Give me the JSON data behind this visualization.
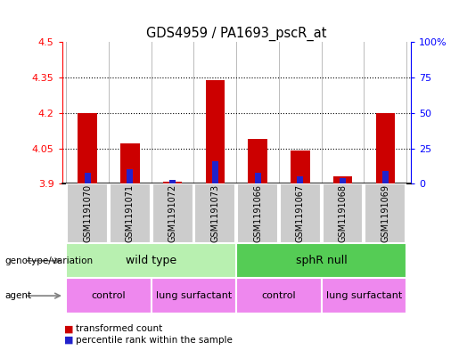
{
  "title": "GDS4959 / PA1693_pscR_at",
  "samples": [
    "GSM1191070",
    "GSM1191071",
    "GSM1191072",
    "GSM1191073",
    "GSM1191066",
    "GSM1191067",
    "GSM1191068",
    "GSM1191069"
  ],
  "red_values": [
    4.2,
    4.07,
    3.91,
    4.34,
    4.09,
    4.04,
    3.93,
    4.2
  ],
  "blue_values_pct": [
    8,
    10,
    3,
    16,
    8,
    5,
    4,
    9
  ],
  "ymin": 3.9,
  "ymax": 4.5,
  "yticks_left": [
    3.9,
    4.05,
    4.2,
    4.35,
    4.5
  ],
  "yticks_right": [
    0,
    25,
    50,
    75,
    100
  ],
  "bar_width": 0.45,
  "blue_bar_width": 0.15,
  "wildtype_color": "#b8f0b0",
  "sphr_color": "#55cc55",
  "agent_color": "#ee88ee",
  "legend_red": "transformed count",
  "legend_blue": "percentile rank within the sample",
  "red_color": "#cc0000",
  "blue_color": "#2222cc",
  "grid_color": "#bbbbbb",
  "label_bg": "#cccccc",
  "plot_bg": "#ffffff"
}
